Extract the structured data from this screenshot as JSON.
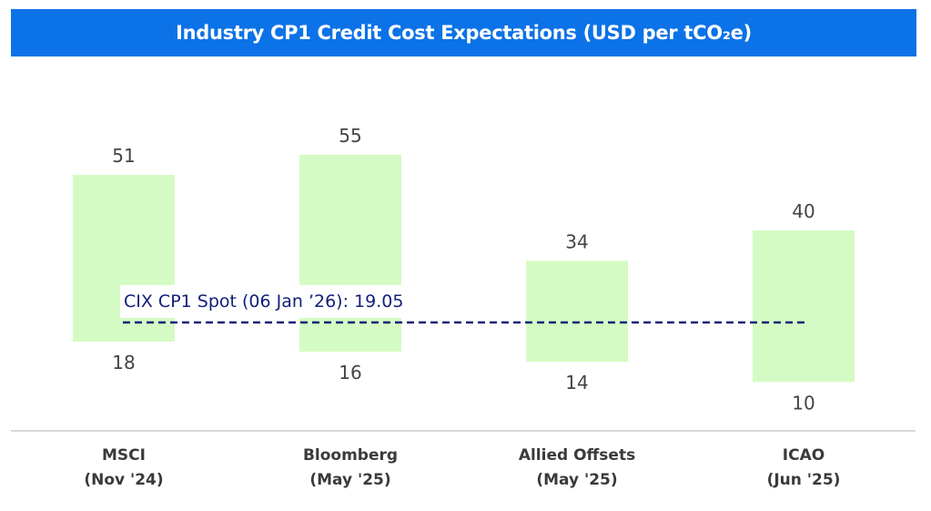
{
  "chart_data": {
    "type": "bar",
    "subtype": "floating-range",
    "title": "Industry CP1 Credit Cost Expectations (USD per tCO₂e)",
    "categories": [
      [
        "MSCI",
        "(Nov '24)"
      ],
      [
        "Bloomberg",
        "(May '25)"
      ],
      [
        "Allied Offsets",
        "(May '25)"
      ],
      [
        "ICAO",
        "(Jun '25)"
      ]
    ],
    "low": [
      18,
      16,
      14,
      10
    ],
    "high": [
      51,
      55,
      34,
      40
    ],
    "reference_line": {
      "label": "CIX CP1 Spot (06 Jan ’26): 19.05",
      "value": 19.05,
      "style": "dashed"
    },
    "grid": false,
    "colors": {
      "bar": "#D5FBC4",
      "title_bg": "#0B72E7",
      "reference": "#14217A",
      "axis": "#cccccc"
    }
  }
}
